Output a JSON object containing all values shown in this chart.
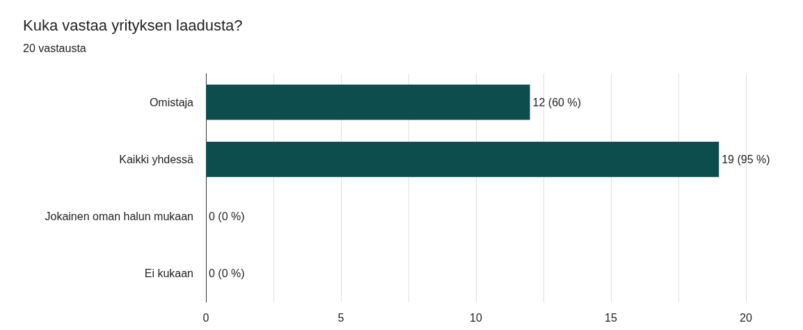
{
  "chart_data": {
    "type": "bar",
    "orientation": "horizontal",
    "title": "Kuka vastaa yrityksen laadusta?",
    "subtitle": "20 vastausta",
    "categories": [
      "Omistaja",
      "Kaikki yhdessä",
      "Jokainen oman halun mukaan",
      "Ei kukaan"
    ],
    "values": [
      12,
      19,
      0,
      0
    ],
    "color": "#0e4d4d",
    "value_labels": [
      "12 (60 %)",
      "19 (95 %)",
      "0 (0 %)",
      "0 (0 %)"
    ],
    "xlim": [
      0,
      20
    ],
    "xticks": [
      0,
      {
        "value": 2.5,
        "label": null
      },
      5,
      {
        "value": 7.5,
        "label": null
      },
      10,
      {
        "value": 12.5,
        "label": null
      },
      15,
      {
        "value": 17.5,
        "label": null
      },
      20
    ],
    "grid": "x"
  }
}
